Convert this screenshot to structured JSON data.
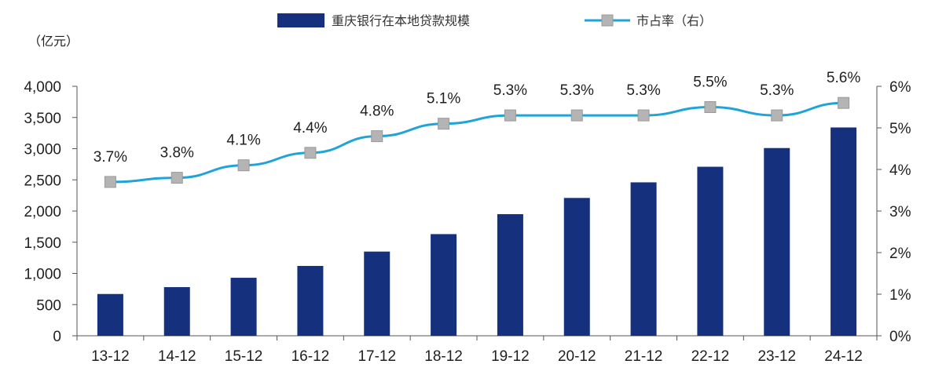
{
  "chart_data": {
    "type": "bar+line",
    "y_unit_label": "（亿元）",
    "categories": [
      "13-12",
      "14-12",
      "15-12",
      "16-12",
      "17-12",
      "18-12",
      "19-12",
      "20-12",
      "21-12",
      "22-12",
      "23-12",
      "24-12"
    ],
    "series": [
      {
        "name": "重庆银行在本地贷款规模",
        "type": "bar",
        "axis": "left",
        "color": "#15317e",
        "values": [
          670,
          780,
          930,
          1120,
          1350,
          1630,
          1950,
          2210,
          2460,
          2710,
          3010,
          3340
        ]
      },
      {
        "name": "市占率（右）",
        "type": "line",
        "axis": "right",
        "color": "#1fa3d8",
        "marker_color": "#b4b4b4",
        "values": [
          3.7,
          3.8,
          4.1,
          4.4,
          4.8,
          5.1,
          5.3,
          5.3,
          5.3,
          5.5,
          5.3,
          5.6
        ],
        "labels": [
          "3.7%",
          "3.8%",
          "4.1%",
          "4.4%",
          "4.8%",
          "5.1%",
          "5.3%",
          "5.3%",
          "5.3%",
          "5.5%",
          "5.3%",
          "5.6%"
        ]
      }
    ],
    "y_left": {
      "min": 0,
      "max": 4000,
      "ticks": [
        "0",
        "500",
        "1,000",
        "1,500",
        "2,000",
        "2,500",
        "3,000",
        "3,500",
        "4,000"
      ]
    },
    "y_right": {
      "min": 0,
      "max": 6,
      "ticks": [
        "0%",
        "1%",
        "2%",
        "3%",
        "4%",
        "5%",
        "6%"
      ]
    },
    "legend_position": "top",
    "grid": false
  }
}
